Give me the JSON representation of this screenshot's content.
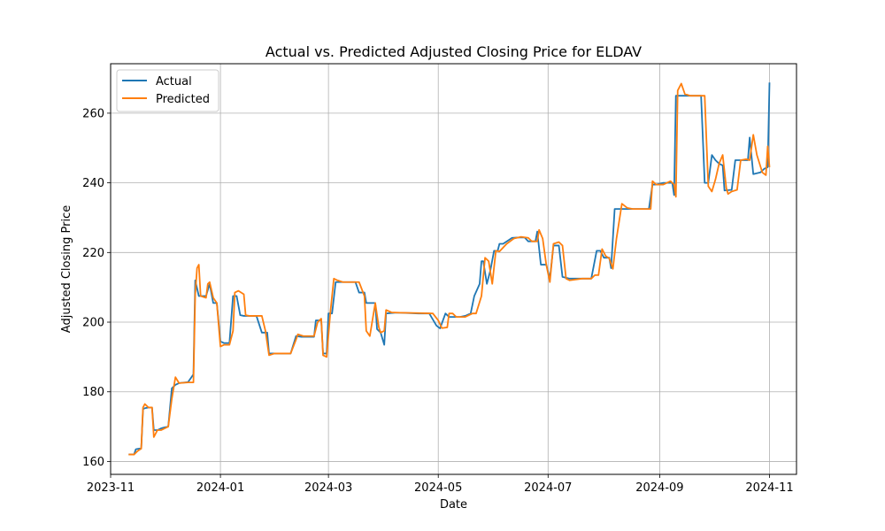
{
  "chart_data": {
    "type": "line",
    "title": "Actual vs. Predicted Adjusted Closing Price for ELDAV",
    "xlabel": "Date",
    "ylabel": "Adjusted Closing Price",
    "xlim": [
      "2023-11-01",
      "2024-11-16"
    ],
    "ylim": [
      156.3,
      274.2
    ],
    "x_ticks": [
      "2023-11",
      "2024-01",
      "2024-03",
      "2024-05",
      "2024-07",
      "2024-09",
      "2024-11"
    ],
    "y_ticks": [
      160,
      180,
      200,
      220,
      240,
      260
    ],
    "grid": true,
    "legend_position": "top-left",
    "colors": {
      "Actual": "#1f77b4",
      "Predicted": "#ff7f0e"
    },
    "series": [
      {
        "name": "Actual",
        "points": [
          [
            "2023-11-11",
            162
          ],
          [
            "2023-11-14",
            162
          ],
          [
            "2023-11-15",
            163.5
          ],
          [
            "2023-11-17",
            163.7
          ],
          [
            "2023-11-18",
            163.7
          ],
          [
            "2023-11-19",
            175
          ],
          [
            "2023-11-20",
            175.3
          ],
          [
            "2023-11-22",
            175.5
          ],
          [
            "2023-11-24",
            175.5
          ],
          [
            "2023-11-25",
            169
          ],
          [
            "2023-11-27",
            169
          ],
          [
            "2023-11-29",
            169.5
          ],
          [
            "2023-12-01",
            169.8
          ],
          [
            "2023-12-03",
            170
          ],
          [
            "2023-12-05",
            181
          ],
          [
            "2023-12-07",
            182
          ],
          [
            "2023-12-09",
            182.5
          ],
          [
            "2023-12-14",
            182.8
          ],
          [
            "2023-12-17",
            185
          ],
          [
            "2023-12-18",
            212
          ],
          [
            "2023-12-20",
            207.5
          ],
          [
            "2023-12-22",
            207.5
          ],
          [
            "2023-12-24",
            207.5
          ],
          [
            "2023-12-26",
            211
          ],
          [
            "2023-12-28",
            205.5
          ],
          [
            "2023-12-30",
            205.5
          ],
          [
            "2024-01-01",
            194.5
          ],
          [
            "2024-01-03",
            194
          ],
          [
            "2024-01-06",
            194
          ],
          [
            "2024-01-08",
            207.5
          ],
          [
            "2024-01-10",
            207.5
          ],
          [
            "2024-01-12",
            202
          ],
          [
            "2024-01-14",
            201.8
          ],
          [
            "2024-01-17",
            201.8
          ],
          [
            "2024-01-21",
            201.8
          ],
          [
            "2024-01-24",
            197
          ],
          [
            "2024-01-27",
            197
          ],
          [
            "2024-01-28",
            191
          ],
          [
            "2024-01-31",
            191
          ],
          [
            "2024-02-04",
            191
          ],
          [
            "2024-02-09",
            191
          ],
          [
            "2024-02-12",
            196
          ],
          [
            "2024-02-15",
            195.8
          ],
          [
            "2024-02-22",
            195.8
          ],
          [
            "2024-02-23",
            200.5
          ],
          [
            "2024-02-26",
            200.5
          ],
          [
            "2024-02-27",
            191
          ],
          [
            "2024-02-29",
            191
          ],
          [
            "2024-03-01",
            202.5
          ],
          [
            "2024-03-03",
            202.5
          ],
          [
            "2024-03-05",
            211.5
          ],
          [
            "2024-03-08",
            211.5
          ],
          [
            "2024-03-12",
            211.5
          ],
          [
            "2024-03-16",
            211.5
          ],
          [
            "2024-03-18",
            208.5
          ],
          [
            "2024-03-21",
            208.5
          ],
          [
            "2024-03-22",
            205.5
          ],
          [
            "2024-03-25",
            205.5
          ],
          [
            "2024-03-27",
            205.5
          ],
          [
            "2024-03-28",
            198
          ],
          [
            "2024-03-30",
            197
          ],
          [
            "2024-04-01",
            193.5
          ],
          [
            "2024-04-02",
            202.5
          ],
          [
            "2024-04-07",
            202.7
          ],
          [
            "2024-04-10",
            202.7
          ],
          [
            "2024-04-20",
            202.5
          ],
          [
            "2024-04-26",
            202.5
          ],
          [
            "2024-04-30",
            199
          ],
          [
            "2024-05-02",
            198.2
          ],
          [
            "2024-05-05",
            202.5
          ],
          [
            "2024-05-07",
            201.5
          ],
          [
            "2024-05-13",
            201.5
          ],
          [
            "2024-05-16",
            201.8
          ],
          [
            "2024-05-19",
            202.5
          ],
          [
            "2024-05-21",
            207.5
          ],
          [
            "2024-05-24",
            211
          ],
          [
            "2024-05-25",
            217.5
          ],
          [
            "2024-05-26",
            217.5
          ],
          [
            "2024-05-28",
            211
          ],
          [
            "2024-05-30",
            215
          ],
          [
            "2024-06-01",
            220.5
          ],
          [
            "2024-06-03",
            220.5
          ],
          [
            "2024-06-04",
            222.5
          ],
          [
            "2024-06-06",
            222.5
          ],
          [
            "2024-06-09",
            223.5
          ],
          [
            "2024-06-11",
            224.2
          ],
          [
            "2024-06-14",
            224.3
          ],
          [
            "2024-06-18",
            224.3
          ],
          [
            "2024-06-20",
            223.2
          ],
          [
            "2024-06-24",
            223.2
          ],
          [
            "2024-06-25",
            226
          ],
          [
            "2024-06-27",
            216.5
          ],
          [
            "2024-06-30",
            216.5
          ],
          [
            "2024-07-02",
            212.5
          ],
          [
            "2024-07-04",
            222
          ],
          [
            "2024-07-07",
            222
          ],
          [
            "2024-07-09",
            213
          ],
          [
            "2024-07-13",
            212.5
          ],
          [
            "2024-07-18",
            212.5
          ],
          [
            "2024-07-25",
            212.5
          ],
          [
            "2024-07-28",
            220.5
          ],
          [
            "2024-07-30",
            220.5
          ],
          [
            "2024-08-01",
            218.5
          ],
          [
            "2024-08-04",
            218.5
          ],
          [
            "2024-08-05",
            215.5
          ],
          [
            "2024-08-07",
            232.5
          ],
          [
            "2024-08-10",
            232.5
          ],
          [
            "2024-08-14",
            232.5
          ],
          [
            "2024-08-20",
            232.5
          ],
          [
            "2024-08-26",
            232.5
          ],
          [
            "2024-08-28",
            239.5
          ],
          [
            "2024-08-30",
            239.5
          ],
          [
            "2024-09-03",
            240
          ],
          [
            "2024-09-05",
            240
          ],
          [
            "2024-09-08",
            240
          ],
          [
            "2024-09-09",
            236.5
          ],
          [
            "2024-09-10",
            265
          ],
          [
            "2024-09-14",
            265
          ],
          [
            "2024-09-18",
            265
          ],
          [
            "2024-09-22",
            265
          ],
          [
            "2024-09-24",
            265
          ],
          [
            "2024-09-26",
            240
          ],
          [
            "2024-09-28",
            240
          ],
          [
            "2024-09-30",
            248
          ],
          [
            "2024-10-02",
            246.5
          ],
          [
            "2024-10-04",
            245.5
          ],
          [
            "2024-10-06",
            245
          ],
          [
            "2024-10-07",
            237.8
          ],
          [
            "2024-10-11",
            238
          ],
          [
            "2024-10-13",
            246.5
          ],
          [
            "2024-10-17",
            246.5
          ],
          [
            "2024-10-20",
            246.5
          ],
          [
            "2024-10-21",
            253
          ],
          [
            "2024-10-23",
            242.5
          ],
          [
            "2024-10-27",
            243
          ],
          [
            "2024-10-29",
            244
          ],
          [
            "2024-10-31",
            244.5
          ],
          [
            "2024-11-01",
            268.8
          ]
        ]
      },
      {
        "name": "Predicted",
        "points": [
          [
            "2023-11-11",
            162
          ],
          [
            "2023-11-14",
            162
          ],
          [
            "2023-11-16",
            163
          ],
          [
            "2023-11-18",
            163.7
          ],
          [
            "2023-11-19",
            175.5
          ],
          [
            "2023-11-20",
            176.5
          ],
          [
            "2023-11-22",
            175.5
          ],
          [
            "2023-11-24",
            175.5
          ],
          [
            "2023-11-25",
            167
          ],
          [
            "2023-11-27",
            169
          ],
          [
            "2023-11-29",
            169
          ],
          [
            "2023-12-01",
            169.5
          ],
          [
            "2023-12-03",
            170
          ],
          [
            "2023-12-05",
            178
          ],
          [
            "2023-12-07",
            184.2
          ],
          [
            "2023-12-09",
            182.5
          ],
          [
            "2023-12-14",
            182.7
          ],
          [
            "2023-12-17",
            182.7
          ],
          [
            "2023-12-18",
            208
          ],
          [
            "2023-12-19",
            215.5
          ],
          [
            "2023-12-20",
            216.5
          ],
          [
            "2023-12-21",
            207.5
          ],
          [
            "2023-12-24",
            207
          ],
          [
            "2023-12-25",
            211
          ],
          [
            "2023-12-26",
            211.5
          ],
          [
            "2023-12-28",
            207
          ],
          [
            "2023-12-30",
            205.5
          ],
          [
            "2024-01-01",
            193
          ],
          [
            "2024-01-03",
            193.5
          ],
          [
            "2024-01-06",
            193.5
          ],
          [
            "2024-01-08",
            197.5
          ],
          [
            "2024-01-09",
            208.5
          ],
          [
            "2024-01-11",
            209
          ],
          [
            "2024-01-14",
            208
          ],
          [
            "2024-01-15",
            202
          ],
          [
            "2024-01-17",
            201.8
          ],
          [
            "2024-01-24",
            201.8
          ],
          [
            "2024-01-26",
            197.5
          ],
          [
            "2024-01-28",
            190.5
          ],
          [
            "2024-01-31",
            191
          ],
          [
            "2024-02-09",
            191
          ],
          [
            "2024-02-12",
            195
          ],
          [
            "2024-02-13",
            196.5
          ],
          [
            "2024-02-16",
            196
          ],
          [
            "2024-02-22",
            196
          ],
          [
            "2024-02-24",
            200
          ],
          [
            "2024-02-26",
            201
          ],
          [
            "2024-02-27",
            190.5
          ],
          [
            "2024-02-29",
            190
          ],
          [
            "2024-03-02",
            202.5
          ],
          [
            "2024-03-04",
            212.5
          ],
          [
            "2024-03-06",
            212
          ],
          [
            "2024-03-09",
            211.5
          ],
          [
            "2024-03-15",
            211.5
          ],
          [
            "2024-03-18",
            211.5
          ],
          [
            "2024-03-21",
            207.5
          ],
          [
            "2024-03-22",
            197.5
          ],
          [
            "2024-03-24",
            196
          ],
          [
            "2024-03-27",
            205.5
          ],
          [
            "2024-03-29",
            198.5
          ],
          [
            "2024-03-30",
            197
          ],
          [
            "2024-04-01",
            197.5
          ],
          [
            "2024-04-02",
            203.5
          ],
          [
            "2024-04-05",
            202.8
          ],
          [
            "2024-04-10",
            202.7
          ],
          [
            "2024-04-20",
            202.6
          ],
          [
            "2024-04-28",
            202.5
          ],
          [
            "2024-05-01",
            200.5
          ],
          [
            "2024-05-03",
            198.3
          ],
          [
            "2024-05-06",
            198.5
          ],
          [
            "2024-05-07",
            202.5
          ],
          [
            "2024-05-09",
            202.5
          ],
          [
            "2024-05-11",
            201.5
          ],
          [
            "2024-05-16",
            201.5
          ],
          [
            "2024-05-20",
            202.5
          ],
          [
            "2024-05-22",
            202.5
          ],
          [
            "2024-05-25",
            207.5
          ],
          [
            "2024-05-27",
            218.5
          ],
          [
            "2024-05-29",
            217.5
          ],
          [
            "2024-05-31",
            211
          ],
          [
            "2024-06-02",
            220.5
          ],
          [
            "2024-06-04",
            220.3
          ],
          [
            "2024-06-08",
            222.5
          ],
          [
            "2024-06-12",
            224
          ],
          [
            "2024-06-16",
            224.5
          ],
          [
            "2024-06-20",
            224.2
          ],
          [
            "2024-06-22",
            223.2
          ],
          [
            "2024-06-25",
            223.2
          ],
          [
            "2024-06-26",
            226.5
          ],
          [
            "2024-06-28",
            224
          ],
          [
            "2024-06-30",
            216.5
          ],
          [
            "2024-07-02",
            211.5
          ],
          [
            "2024-07-04",
            222.5
          ],
          [
            "2024-07-07",
            223
          ],
          [
            "2024-07-09",
            222
          ],
          [
            "2024-07-11",
            212.5
          ],
          [
            "2024-07-13",
            212
          ],
          [
            "2024-07-20",
            212.5
          ],
          [
            "2024-07-25",
            212.5
          ],
          [
            "2024-07-27",
            213.5
          ],
          [
            "2024-07-29",
            213.5
          ],
          [
            "2024-07-31",
            221
          ],
          [
            "2024-08-02",
            219
          ],
          [
            "2024-08-04",
            218.3
          ],
          [
            "2024-08-06",
            215.3
          ],
          [
            "2024-08-08",
            224
          ],
          [
            "2024-08-11",
            234
          ],
          [
            "2024-08-14",
            232.8
          ],
          [
            "2024-08-17",
            232.5
          ],
          [
            "2024-08-25",
            232.5
          ],
          [
            "2024-08-27",
            232.5
          ],
          [
            "2024-08-28",
            240.5
          ],
          [
            "2024-08-30",
            239.5
          ],
          [
            "2024-09-03",
            239.5
          ],
          [
            "2024-09-07",
            240.5
          ],
          [
            "2024-09-09",
            239.5
          ],
          [
            "2024-09-10",
            236
          ],
          [
            "2024-09-11",
            266.5
          ],
          [
            "2024-09-13",
            268.5
          ],
          [
            "2024-09-15",
            265.5
          ],
          [
            "2024-09-18",
            265
          ],
          [
            "2024-09-24",
            265
          ],
          [
            "2024-09-26",
            265
          ],
          [
            "2024-09-28",
            239
          ],
          [
            "2024-09-30",
            237.5
          ],
          [
            "2024-10-02",
            241
          ],
          [
            "2024-10-04",
            245.5
          ],
          [
            "2024-10-06",
            248
          ],
          [
            "2024-10-08",
            238.5
          ],
          [
            "2024-10-09",
            236.8
          ],
          [
            "2024-10-11",
            237.5
          ],
          [
            "2024-10-14",
            238
          ],
          [
            "2024-10-16",
            246.5
          ],
          [
            "2024-10-19",
            246.8
          ],
          [
            "2024-10-21",
            246.5
          ],
          [
            "2024-10-23",
            253.8
          ],
          [
            "2024-10-25",
            248
          ],
          [
            "2024-10-28",
            243
          ],
          [
            "2024-10-30",
            242.2
          ],
          [
            "2024-10-31",
            250.5
          ],
          [
            "2024-11-01",
            244.5
          ]
        ]
      }
    ]
  }
}
